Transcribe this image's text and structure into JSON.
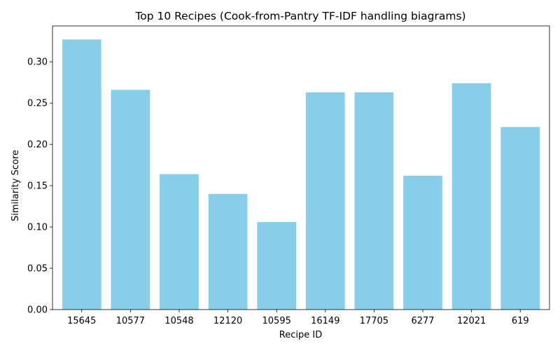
{
  "chart_data": {
    "type": "bar",
    "title": "Top 10 Recipes (Cook-from-Pantry TF-IDF handling biagrams)",
    "xlabel": "Recipe ID",
    "ylabel": "Similarity Score",
    "categories": [
      "15645",
      "10577",
      "10548",
      "12120",
      "10595",
      "16149",
      "17705",
      "6277",
      "12021",
      "619"
    ],
    "values": [
      0.327,
      0.266,
      0.164,
      0.14,
      0.106,
      0.263,
      0.263,
      0.162,
      0.274,
      0.221
    ],
    "ylim": [
      0,
      0.3434
    ],
    "yticks": [
      0.0,
      0.05,
      0.1,
      0.15,
      0.2,
      0.25,
      0.3
    ],
    "ytick_labels": [
      "0.00",
      "0.05",
      "0.10",
      "0.15",
      "0.20",
      "0.25",
      "0.30"
    ],
    "grid": false,
    "legend": null,
    "bar_color": "#87ceeb"
  }
}
